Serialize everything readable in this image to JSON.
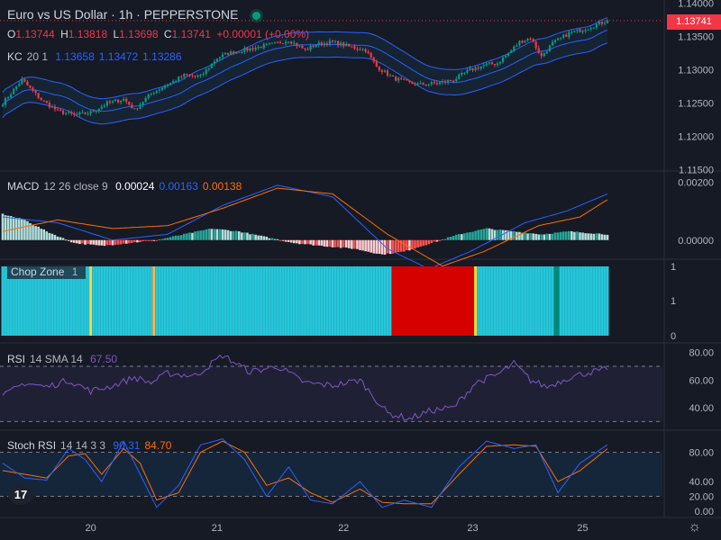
{
  "header": {
    "title": "Euro vs US Dollar · 1h · PEPPERSTONE",
    "ohlc": {
      "o_label": "O",
      "o": "1.13744",
      "h_label": "H",
      "h": "1.13818",
      "l_label": "L",
      "l": "1.13698",
      "c_label": "C",
      "c": "1.13741",
      "change": "+0.00001 (+0.00%)"
    },
    "last_price": "1.13741"
  },
  "legends": {
    "kc": {
      "name": "KC",
      "params": "20 1",
      "v1": "1.13658",
      "v2": "1.13472",
      "v3": "1.13286"
    },
    "macd": {
      "name": "MACD",
      "params": "12 26 close 9",
      "v1": "0.00024",
      "v2": "0.00163",
      "v3": "0.00138"
    },
    "chop": {
      "name": "Chop Zone",
      "params": "1"
    },
    "rsi": {
      "name": "RSI",
      "params": "14 SMA 14",
      "v1": "67.50"
    },
    "stoch": {
      "name": "Stoch RSI",
      "params": "14 14 3 3",
      "v1": "90.31",
      "v2": "84.70"
    }
  },
  "colors": {
    "bg": "#161a25",
    "up": "#089981",
    "down": "#f23645",
    "kc": "#2962ff",
    "macd": "#2962ff",
    "signal": "#ff6d00",
    "rsi": "#7e57c2",
    "chop_cyan": "#26c6da",
    "chop_red": "#d50000",
    "chop_yellow": "#fdd835",
    "chop_orange": "#ffb74d"
  },
  "x_labels": [
    "20",
    "21",
    "22",
    "23",
    "25"
  ],
  "chart_data": [
    {
      "type": "candlestick",
      "ylim": [
        1.1148,
        1.1405
      ],
      "ticks": [
        "1.14000",
        "1.13500",
        "1.13000",
        "1.12500",
        "1.12000",
        "1.11500"
      ],
      "anchors": [
        [
          0,
          1.125
        ],
        [
          3,
          1.1265
        ],
        [
          7,
          1.1285
        ],
        [
          10,
          1.1272
        ],
        [
          14,
          1.1255
        ],
        [
          20,
          1.1238
        ],
        [
          26,
          1.1232
        ],
        [
          32,
          1.1236
        ],
        [
          38,
          1.125
        ],
        [
          44,
          1.1256
        ],
        [
          48,
          1.124
        ],
        [
          54,
          1.1265
        ],
        [
          60,
          1.1278
        ],
        [
          66,
          1.1292
        ],
        [
          72,
          1.129
        ],
        [
          78,
          1.1318
        ],
        [
          82,
          1.1325
        ],
        [
          88,
          1.133
        ],
        [
          94,
          1.1335
        ],
        [
          100,
          1.134
        ],
        [
          104,
          1.1345
        ],
        [
          110,
          1.133
        ],
        [
          114,
          1.1338
        ],
        [
          120,
          1.1342
        ],
        [
          126,
          1.1335
        ],
        [
          132,
          1.133
        ],
        [
          136,
          1.1305
        ],
        [
          142,
          1.1288
        ],
        [
          148,
          1.128
        ],
        [
          152,
          1.1278
        ],
        [
          158,
          1.128
        ],
        [
          164,
          1.1285
        ],
        [
          170,
          1.13
        ],
        [
          176,
          1.1308
        ],
        [
          180,
          1.131
        ],
        [
          184,
          1.1325
        ],
        [
          188,
          1.1342
        ],
        [
          192,
          1.1348
        ],
        [
          196,
          1.132
        ],
        [
          200,
          1.134
        ],
        [
          206,
          1.1355
        ],
        [
          212,
          1.1362
        ],
        [
          216,
          1.1368
        ],
        [
          220,
          1.1374
        ]
      ],
      "keltner": {
        "upper": "1.13658",
        "basis": "1.13472",
        "lower": "1.13286"
      },
      "last": 1.13741
    },
    {
      "type": "macd_histogram",
      "ylim": [
        -0.0006,
        0.0023
      ],
      "ticks": [
        "0.00200",
        "0.00000"
      ],
      "anchors": [
        [
          0,
          0.0009
        ],
        [
          8,
          0.0007
        ],
        [
          16,
          0.0003
        ],
        [
          26,
          -0.0001
        ],
        [
          36,
          -0.0002
        ],
        [
          46,
          -0.0001
        ],
        [
          56,
          0.0
        ],
        [
          66,
          0.0002
        ],
        [
          76,
          0.0004
        ],
        [
          86,
          0.0003
        ],
        [
          96,
          0.0001
        ],
        [
          106,
          -0.0001
        ],
        [
          116,
          -0.0002
        ],
        [
          128,
          -0.0003
        ],
        [
          138,
          -0.0005
        ],
        [
          146,
          -0.0004
        ],
        [
          156,
          -0.0001
        ],
        [
          166,
          0.0002
        ],
        [
          176,
          0.0004
        ],
        [
          186,
          0.0003
        ],
        [
          196,
          0.0002
        ],
        [
          206,
          0.0003
        ],
        [
          220,
          0.0002
        ]
      ],
      "macd_anchors": [
        [
          0,
          0.0008
        ],
        [
          20,
          0.0006
        ],
        [
          40,
          0.0
        ],
        [
          60,
          0.0002
        ],
        [
          80,
          0.0012
        ],
        [
          100,
          0.0019
        ],
        [
          120,
          0.0015
        ],
        [
          140,
          -0.0003
        ],
        [
          155,
          -0.001
        ],
        [
          170,
          -0.0004
        ],
        [
          190,
          0.0006
        ],
        [
          205,
          0.001
        ],
        [
          220,
          0.0016
        ]
      ],
      "signal_anchors": [
        [
          0,
          0.0003
        ],
        [
          20,
          0.0007
        ],
        [
          40,
          0.0004
        ],
        [
          60,
          0.0005
        ],
        [
          80,
          0.0011
        ],
        [
          100,
          0.0018
        ],
        [
          120,
          0.0016
        ],
        [
          140,
          0.0002
        ],
        [
          160,
          -0.0009
        ],
        [
          175,
          -0.0004
        ],
        [
          195,
          0.0005
        ],
        [
          210,
          0.0008
        ],
        [
          220,
          0.0014
        ]
      ]
    },
    {
      "type": "chop_zone",
      "ylim": [
        0,
        1
      ],
      "ticks": [
        "1",
        "1",
        "0"
      ],
      "segments": [
        [
          0,
          31,
          "cyan"
        ],
        [
          32,
          32,
          "yellow"
        ],
        [
          33,
          54,
          "cyan"
        ],
        [
          55,
          55,
          "orange"
        ],
        [
          56,
          141,
          "cyan"
        ],
        [
          142,
          171,
          "red"
        ],
        [
          172,
          172,
          "yellow"
        ],
        [
          173,
          200,
          "cyan"
        ],
        [
          201,
          202,
          "teal"
        ],
        [
          203,
          220,
          "cyan"
        ]
      ]
    },
    {
      "type": "line",
      "name": "RSI",
      "ylim": [
        25,
        85
      ],
      "ticks": [
        "80.00",
        "60.00",
        "40.00"
      ],
      "bands": [
        70,
        30
      ],
      "anchors": [
        [
          0,
          48
        ],
        [
          8,
          58
        ],
        [
          16,
          55
        ],
        [
          24,
          60
        ],
        [
          32,
          52
        ],
        [
          40,
          56
        ],
        [
          48,
          62
        ],
        [
          54,
          58
        ],
        [
          60,
          65
        ],
        [
          70,
          63
        ],
        [
          80,
          78
        ],
        [
          90,
          66
        ],
        [
          100,
          70
        ],
        [
          110,
          58
        ],
        [
          120,
          56
        ],
        [
          130,
          60
        ],
        [
          140,
          36
        ],
        [
          148,
          32
        ],
        [
          156,
          38
        ],
        [
          164,
          40
        ],
        [
          172,
          58
        ],
        [
          180,
          64
        ],
        [
          186,
          72
        ],
        [
          192,
          60
        ],
        [
          198,
          55
        ],
        [
          206,
          62
        ],
        [
          214,
          66
        ],
        [
          220,
          67.5
        ]
      ]
    },
    {
      "type": "line",
      "name": "Stoch RSI",
      "ylim": [
        -5,
        105
      ],
      "ticks": [
        "80.00",
        "40.00",
        "20.00",
        "0.00"
      ],
      "bands": [
        80,
        20
      ],
      "k_anchors": [
        [
          0,
          65
        ],
        [
          8,
          45
        ],
        [
          16,
          42
        ],
        [
          24,
          85
        ],
        [
          30,
          70
        ],
        [
          36,
          40
        ],
        [
          44,
          95
        ],
        [
          50,
          50
        ],
        [
          56,
          5
        ],
        [
          64,
          35
        ],
        [
          72,
          90
        ],
        [
          80,
          98
        ],
        [
          88,
          70
        ],
        [
          96,
          20
        ],
        [
          104,
          60
        ],
        [
          112,
          15
        ],
        [
          120,
          10
        ],
        [
          130,
          40
        ],
        [
          138,
          5
        ],
        [
          146,
          15
        ],
        [
          156,
          5
        ],
        [
          166,
          60
        ],
        [
          176,
          95
        ],
        [
          186,
          85
        ],
        [
          194,
          90
        ],
        [
          202,
          25
        ],
        [
          210,
          65
        ],
        [
          220,
          90
        ]
      ],
      "d_anchors": [
        [
          0,
          55
        ],
        [
          8,
          50
        ],
        [
          16,
          45
        ],
        [
          24,
          75
        ],
        [
          30,
          78
        ],
        [
          36,
          50
        ],
        [
          44,
          85
        ],
        [
          50,
          65
        ],
        [
          56,
          15
        ],
        [
          64,
          25
        ],
        [
          72,
          80
        ],
        [
          80,
          95
        ],
        [
          88,
          80
        ],
        [
          96,
          35
        ],
        [
          104,
          45
        ],
        [
          112,
          25
        ],
        [
          120,
          12
        ],
        [
          130,
          30
        ],
        [
          138,
          12
        ],
        [
          146,
          10
        ],
        [
          156,
          10
        ],
        [
          166,
          50
        ],
        [
          176,
          88
        ],
        [
          186,
          90
        ],
        [
          194,
          88
        ],
        [
          202,
          40
        ],
        [
          210,
          55
        ],
        [
          220,
          84.7
        ]
      ]
    }
  ]
}
